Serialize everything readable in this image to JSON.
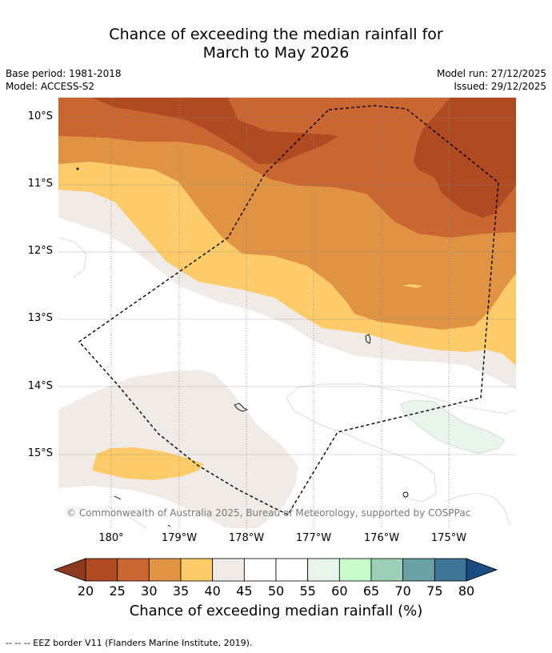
{
  "title": {
    "line1": "Chance of exceeding the median rainfall for",
    "line2": "March to May 2026"
  },
  "meta": {
    "base_period": "Base period: 1981-2018",
    "model": "Model: ACCESS-S2",
    "model_run": "Model run: 27/12/2025",
    "issued": "Issued: 29/12/2025"
  },
  "map": {
    "lat_labels": [
      "10°S",
      "11°S",
      "12°S",
      "13°S",
      "14°S",
      "15°S"
    ],
    "lon_labels": [
      "180°",
      "179°W",
      "178°W",
      "177°W",
      "176°W",
      "175°W"
    ],
    "copyright": "© Commonwealth of Australia 2025, Bureau of Meteorology, supported by COSPPac",
    "colors": {
      "c20_25": "#b04a22",
      "c25_30": "#c96631",
      "c30_35": "#e09443",
      "c35_40": "#fdcb6a",
      "c40_45": "#f0ebe6",
      "c45_55": "#ffffff",
      "c55_60": "#e9f5ea",
      "eez": "#000000",
      "grid": "#8a8a8a"
    }
  },
  "colorbar": {
    "ticks": [
      "20",
      "25",
      "30",
      "35",
      "40",
      "45",
      "50",
      "55",
      "60",
      "65",
      "70",
      "75",
      "80"
    ],
    "colors": [
      "#b04a22",
      "#c96631",
      "#e09443",
      "#fdcb6a",
      "#f0ebe6",
      "#ffffff",
      "#ffffff",
      "#e9f5ea",
      "#c8fccb",
      "#9ccfb6",
      "#6aa2a4",
      "#3e7596"
    ],
    "low_extend_color": "#8c3a20",
    "high_extend_color": "#1a4c82",
    "title": "Chance of exceeding median rainfall (%)"
  },
  "footer": "--  --  -- EEZ border V11 (Flanders Marine Institute, 2019)."
}
